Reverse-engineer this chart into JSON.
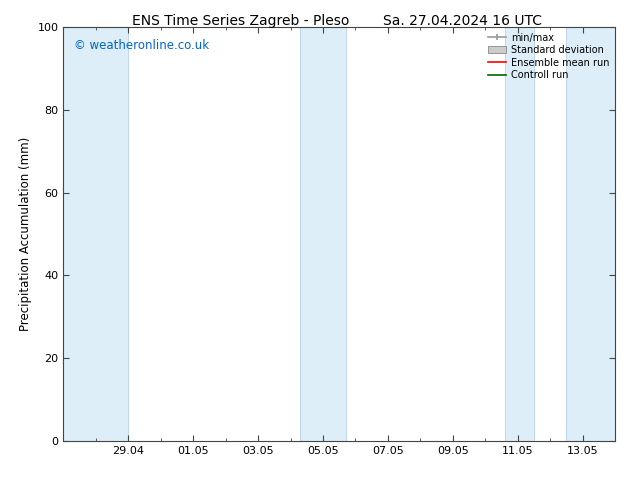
{
  "title_left": "ENS Time Series Zagreb - Pleso",
  "title_right": "Sa. 27.04.2024 16 UTC",
  "ylabel": "Precipitation Accumulation (mm)",
  "watermark": "© weatheronline.co.uk",
  "watermark_color": "#0066cc",
  "ylim": [
    0,
    100
  ],
  "yticks": [
    0,
    20,
    40,
    60,
    80,
    100
  ],
  "background_color": "#ffffff",
  "plot_bg_color": "#ffffff",
  "shaded_band_color": "#ddeef8",
  "shaded_band_edge_color": "#aaccee",
  "x_tick_labels": [
    "29.04",
    "01.05",
    "03.05",
    "05.05",
    "07.05",
    "09.05",
    "11.05",
    "13.05"
  ],
  "legend_labels": [
    "min/max",
    "Standard deviation",
    "Ensemble mean run",
    "Controll run"
  ],
  "legend_colors": [
    "#999999",
    "#cccccc",
    "#ff0000",
    "#006600"
  ],
  "title_fontsize": 10,
  "label_fontsize": 8.5,
  "tick_fontsize": 8,
  "watermark_fontsize": 8.5
}
